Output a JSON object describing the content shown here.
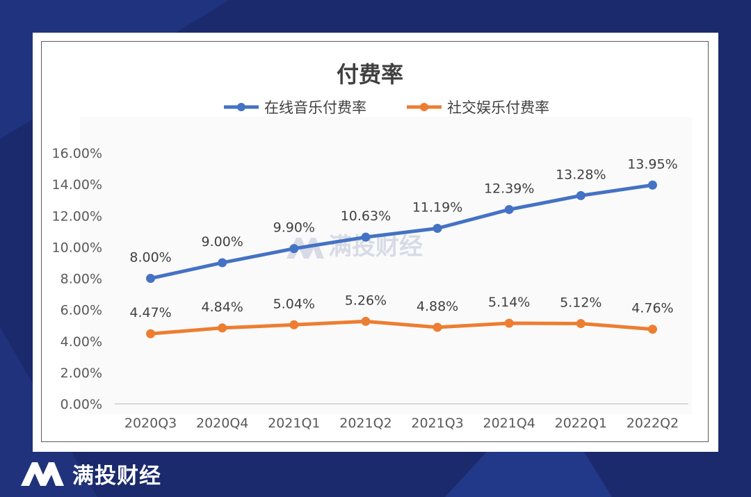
{
  "brand": {
    "name": "满投财经",
    "watermark": "满投财经"
  },
  "colors": {
    "background": "#1a2a6c",
    "series_music": "#4472c4",
    "series_social": "#ed7d31"
  },
  "chart_data": {
    "type": "line",
    "title": "付费率",
    "categories": [
      "2020Q3",
      "2020Q4",
      "2021Q1",
      "2021Q2",
      "2021Q3",
      "2021Q4",
      "2022Q1",
      "2022Q2"
    ],
    "series": [
      {
        "name": "在线音乐付费率",
        "values": [
          8.0,
          9.0,
          9.9,
          10.63,
          11.19,
          12.39,
          13.28,
          13.95
        ],
        "labels": [
          "8.00%",
          "9.00%",
          "9.90%",
          "10.63%",
          "11.19%",
          "12.39%",
          "13.28%",
          "13.95%"
        ]
      },
      {
        "name": "社交娱乐付费率",
        "values": [
          4.47,
          4.84,
          5.04,
          5.26,
          4.88,
          5.14,
          5.12,
          4.76
        ],
        "labels": [
          "4.47%",
          "4.84%",
          "5.04%",
          "5.26%",
          "4.88%",
          "5.14%",
          "5.12%",
          "4.76%"
        ]
      }
    ],
    "ylim": [
      0,
      16
    ],
    "yticks": [
      "0.00%",
      "2.00%",
      "4.00%",
      "6.00%",
      "8.00%",
      "10.00%",
      "12.00%",
      "14.00%",
      "16.00%"
    ],
    "legend": "top",
    "grid": false
  }
}
